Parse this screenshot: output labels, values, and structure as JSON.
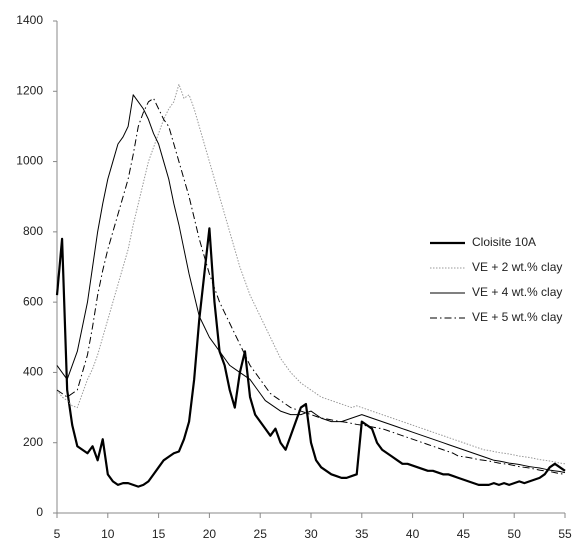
{
  "chart_data": {
    "type": "line",
    "x": [
      5,
      5.5,
      6,
      6.5,
      7,
      7.5,
      8,
      8.5,
      9,
      9.5,
      10,
      10.5,
      11,
      11.5,
      12,
      12.5,
      13,
      13.5,
      14,
      14.5,
      15,
      15.5,
      16,
      16.5,
      17,
      17.5,
      18,
      18.5,
      19,
      19.5,
      20,
      20.5,
      21,
      21.5,
      22,
      22.5,
      23,
      23.5,
      24,
      24.5,
      25,
      25.5,
      26,
      26.5,
      27,
      27.5,
      28,
      28.5,
      29,
      29.5,
      30,
      30.5,
      31,
      31.5,
      32,
      32.5,
      33,
      33.5,
      34,
      34.5,
      35,
      35.5,
      36,
      36.5,
      37,
      37.5,
      38,
      38.5,
      39,
      39.5,
      40,
      40.5,
      41,
      41.5,
      42,
      42.5,
      43,
      43.5,
      44,
      44.5,
      45,
      45.5,
      46,
      46.5,
      47,
      47.5,
      48,
      48.5,
      49,
      49.5,
      50,
      50.5,
      51,
      51.5,
      52,
      52.5,
      53,
      53.5,
      54,
      54.5,
      55
    ],
    "series": [
      {
        "name": "Cloisite 10A",
        "color": "#000000",
        "line_width": 2.2,
        "line_style": "solid",
        "values": [
          620,
          780,
          350,
          250,
          190,
          180,
          170,
          190,
          150,
          210,
          110,
          90,
          80,
          85,
          85,
          80,
          75,
          80,
          90,
          110,
          130,
          150,
          160,
          170,
          175,
          210,
          260,
          380,
          550,
          680,
          810,
          600,
          460,
          420,
          350,
          300,
          400,
          460,
          330,
          280,
          260,
          240,
          220,
          240,
          200,
          180,
          220,
          260,
          300,
          310,
          200,
          150,
          130,
          120,
          110,
          105,
          100,
          100,
          105,
          110,
          260,
          250,
          240,
          200,
          180,
          170,
          160,
          150,
          140,
          140,
          135,
          130,
          125,
          120,
          120,
          115,
          110,
          110,
          105,
          100,
          95,
          90,
          85,
          80,
          80,
          80,
          85,
          80,
          85,
          80,
          85,
          90,
          85,
          90,
          95,
          100,
          110,
          130,
          140,
          130,
          120
        ]
      },
      {
        "name": "VE + 2 wt.% clay",
        "color": "#999999",
        "line_width": 1,
        "line_style": "dotted",
        "values": [
          350,
          330,
          320,
          305,
          300,
          340,
          380,
          410,
          450,
          500,
          550,
          600,
          650,
          700,
          750,
          820,
          880,
          940,
          1000,
          1040,
          1080,
          1120,
          1150,
          1170,
          1220,
          1180,
          1190,
          1150,
          1100,
          1050,
          1000,
          950,
          900,
          850,
          800,
          750,
          700,
          660,
          620,
          590,
          560,
          530,
          500,
          470,
          440,
          420,
          400,
          385,
          370,
          360,
          350,
          340,
          330,
          325,
          320,
          315,
          310,
          305,
          300,
          305,
          300,
          295,
          290,
          285,
          280,
          275,
          270,
          265,
          260,
          255,
          250,
          245,
          240,
          235,
          230,
          225,
          220,
          215,
          210,
          205,
          200,
          195,
          190,
          185,
          180,
          178,
          175,
          172,
          170,
          168,
          165,
          162,
          160,
          158,
          155,
          152,
          150,
          148,
          145,
          142,
          140
        ]
      },
      {
        "name": "VE + 4 wt.% clay",
        "color": "#000000",
        "line_width": 1,
        "line_style": "solid",
        "values": [
          420,
          400,
          380,
          420,
          460,
          530,
          600,
          700,
          800,
          880,
          950,
          1000,
          1050,
          1070,
          1100,
          1190,
          1170,
          1150,
          1120,
          1080,
          1050,
          1000,
          950,
          880,
          820,
          750,
          680,
          620,
          560,
          530,
          500,
          480,
          460,
          440,
          420,
          410,
          400,
          390,
          380,
          360,
          340,
          320,
          310,
          300,
          290,
          285,
          280,
          280,
          280,
          285,
          290,
          280,
          270,
          265,
          260,
          260,
          260,
          265,
          270,
          275,
          280,
          275,
          270,
          265,
          260,
          255,
          250,
          245,
          240,
          235,
          230,
          225,
          220,
          215,
          210,
          205,
          200,
          195,
          190,
          185,
          180,
          175,
          170,
          165,
          160,
          155,
          150,
          148,
          145,
          142,
          140,
          138,
          135,
          132,
          130,
          128,
          125,
          122,
          120,
          118,
          115
        ]
      },
      {
        "name": "VE + 5 wt.% clay",
        "color": "#000000",
        "line_width": 1,
        "line_style": "dashdot",
        "values": [
          350,
          340,
          330,
          340,
          350,
          400,
          450,
          530,
          620,
          690,
          750,
          800,
          850,
          900,
          950,
          1020,
          1100,
          1140,
          1170,
          1180,
          1150,
          1120,
          1100,
          1050,
          1000,
          950,
          900,
          840,
          780,
          730,
          680,
          640,
          600,
          570,
          540,
          510,
          480,
          450,
          420,
          400,
          380,
          360,
          340,
          330,
          320,
          310,
          300,
          295,
          290,
          285,
          280,
          275,
          270,
          268,
          265,
          262,
          260,
          258,
          255,
          252,
          250,
          248,
          245,
          242,
          240,
          235,
          230,
          225,
          220,
          215,
          210,
          205,
          200,
          195,
          190,
          185,
          180,
          175,
          170,
          162,
          160,
          158,
          155,
          152,
          150,
          148,
          145,
          142,
          140,
          138,
          135,
          132,
          130,
          128,
          125,
          122,
          120,
          118,
          115,
          112,
          110
        ]
      }
    ],
    "xlim": [
      5,
      55
    ],
    "xticks": [
      5,
      10,
      15,
      20,
      25,
      30,
      35,
      40,
      45,
      50,
      55
    ],
    "ylim": [
      0,
      1400
    ],
    "yticks": [
      0,
      200,
      400,
      600,
      800,
      1000,
      1200,
      1400
    ],
    "grid": false,
    "legend": "right"
  }
}
